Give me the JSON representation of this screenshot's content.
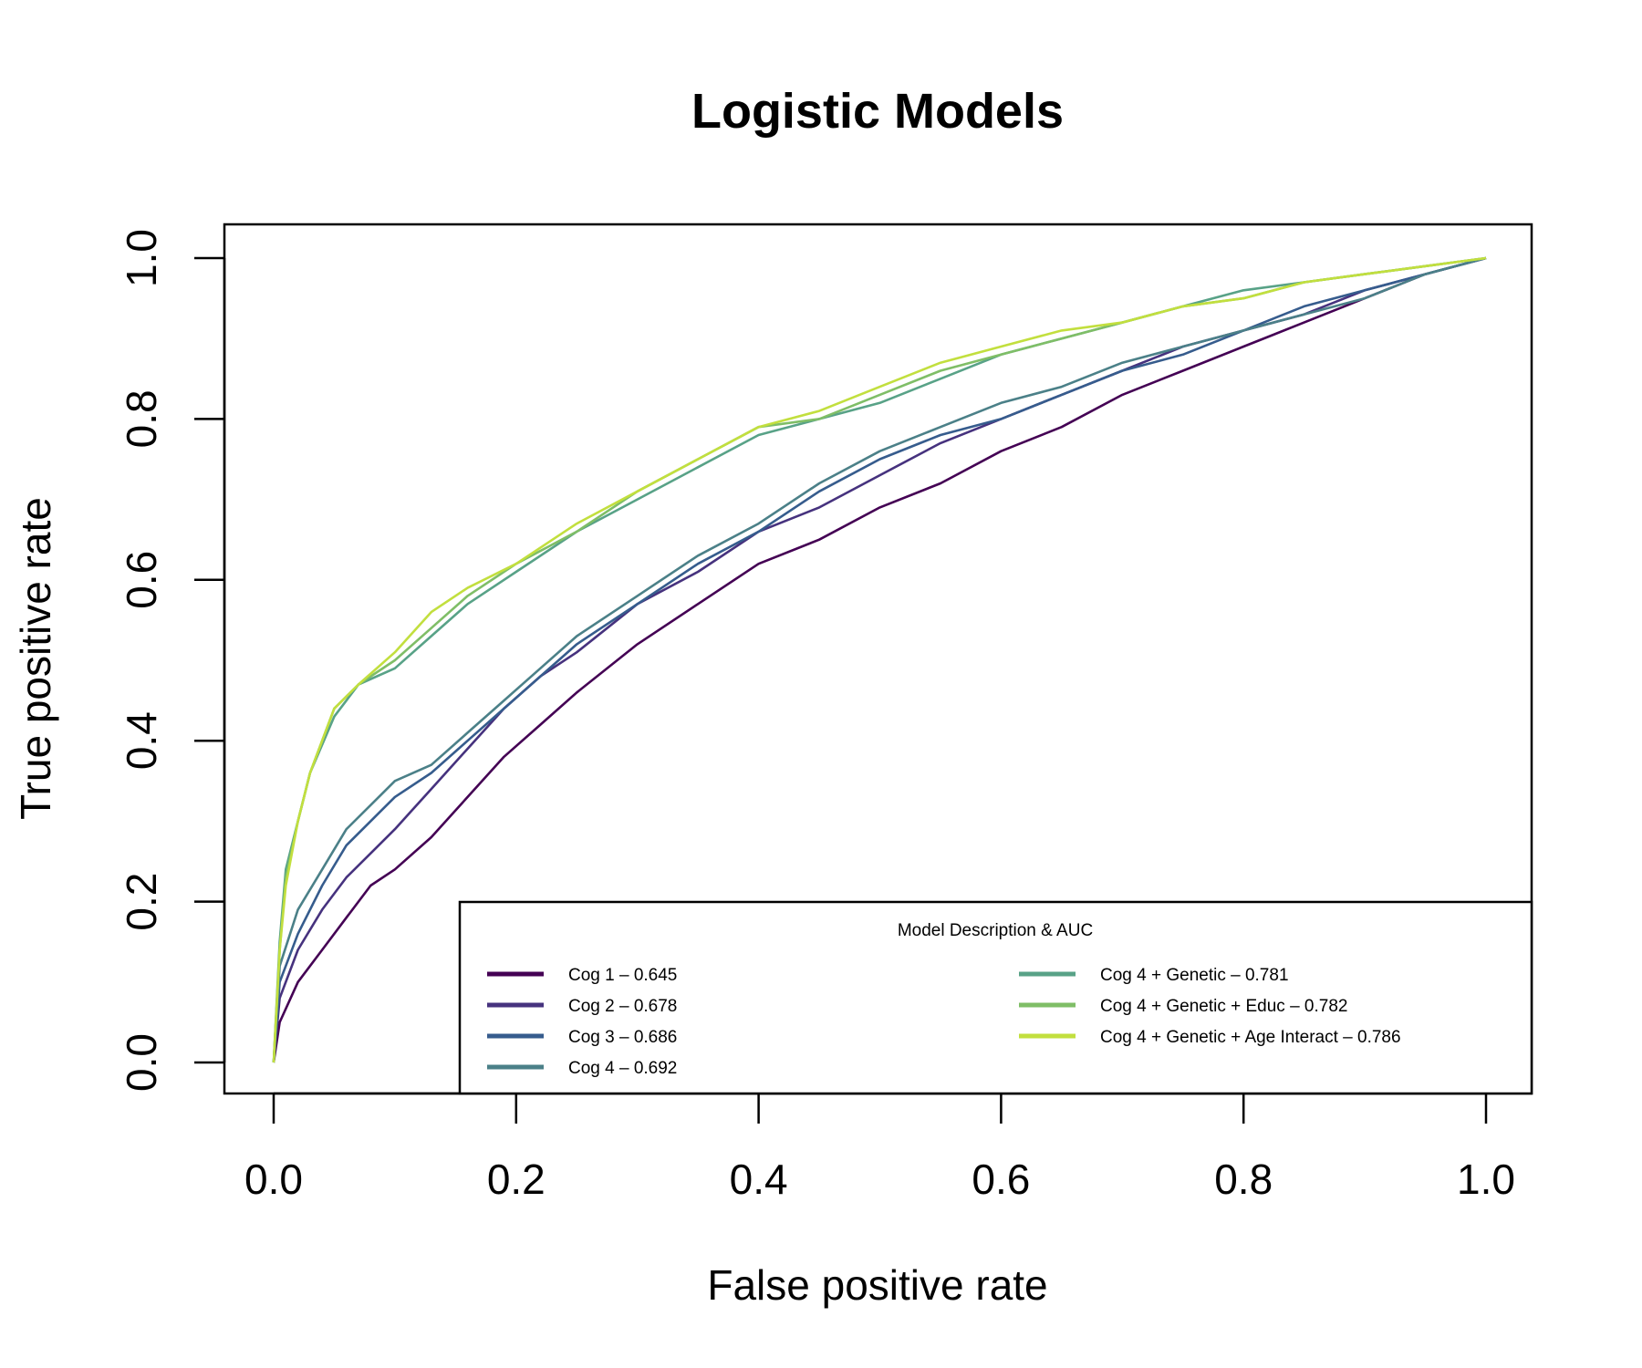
{
  "chart_data": {
    "type": "line",
    "title": "Logistic Models",
    "xlabel": "False positive rate",
    "ylabel": "True positive rate",
    "xlim": [
      0,
      1
    ],
    "ylim": [
      0,
      1
    ],
    "xticks": [
      "0.0",
      "0.2",
      "0.4",
      "0.6",
      "0.8",
      "1.0"
    ],
    "yticks": [
      "0.0",
      "0.2",
      "0.4",
      "0.6",
      "0.8",
      "1.0"
    ],
    "grid": false,
    "legend": {
      "title": "Model Description & AUC",
      "placement": "bottom-right"
    },
    "series": [
      {
        "name": "Cog 1 – 0.645",
        "color": "#440154",
        "x": [
          0,
          0.005,
          0.02,
          0.04,
          0.06,
          0.08,
          0.1,
          0.13,
          0.16,
          0.19,
          0.22,
          0.25,
          0.3,
          0.35,
          0.4,
          0.45,
          0.5,
          0.55,
          0.6,
          0.65,
          0.7,
          0.75,
          0.8,
          0.85,
          0.9,
          0.95,
          1
        ],
        "y": [
          0,
          0.05,
          0.1,
          0.14,
          0.18,
          0.22,
          0.24,
          0.28,
          0.33,
          0.38,
          0.42,
          0.46,
          0.52,
          0.57,
          0.62,
          0.65,
          0.69,
          0.72,
          0.76,
          0.79,
          0.83,
          0.86,
          0.89,
          0.92,
          0.95,
          0.98,
          1
        ]
      },
      {
        "name": "Cog 2 – 0.678",
        "color": "#46327e",
        "x": [
          0,
          0.005,
          0.02,
          0.04,
          0.06,
          0.08,
          0.1,
          0.13,
          0.16,
          0.19,
          0.22,
          0.25,
          0.3,
          0.35,
          0.4,
          0.45,
          0.5,
          0.55,
          0.6,
          0.65,
          0.7,
          0.75,
          0.8,
          0.85,
          0.9,
          0.95,
          1
        ],
        "y": [
          0,
          0.08,
          0.14,
          0.19,
          0.23,
          0.26,
          0.29,
          0.34,
          0.39,
          0.44,
          0.48,
          0.51,
          0.57,
          0.61,
          0.66,
          0.69,
          0.73,
          0.77,
          0.8,
          0.83,
          0.86,
          0.89,
          0.91,
          0.93,
          0.96,
          0.98,
          1
        ]
      },
      {
        "name": "Cog 3 – 0.686",
        "color": "#365c8d",
        "x": [
          0,
          0.005,
          0.02,
          0.04,
          0.06,
          0.08,
          0.1,
          0.13,
          0.16,
          0.19,
          0.22,
          0.25,
          0.3,
          0.35,
          0.4,
          0.45,
          0.5,
          0.55,
          0.6,
          0.65,
          0.7,
          0.75,
          0.8,
          0.85,
          0.9,
          0.95,
          1
        ],
        "y": [
          0,
          0.1,
          0.16,
          0.22,
          0.27,
          0.3,
          0.33,
          0.36,
          0.4,
          0.44,
          0.48,
          0.52,
          0.57,
          0.62,
          0.66,
          0.71,
          0.75,
          0.78,
          0.8,
          0.83,
          0.86,
          0.88,
          0.91,
          0.94,
          0.96,
          0.98,
          1
        ]
      },
      {
        "name": "Cog 4 – 0.692",
        "color": "#4b8088",
        "x": [
          0,
          0.005,
          0.02,
          0.04,
          0.06,
          0.08,
          0.1,
          0.13,
          0.16,
          0.19,
          0.22,
          0.25,
          0.3,
          0.35,
          0.4,
          0.45,
          0.5,
          0.55,
          0.6,
          0.65,
          0.7,
          0.75,
          0.8,
          0.85,
          0.9,
          0.95,
          1
        ],
        "y": [
          0,
          0.12,
          0.19,
          0.24,
          0.29,
          0.32,
          0.35,
          0.37,
          0.41,
          0.45,
          0.49,
          0.53,
          0.58,
          0.63,
          0.67,
          0.72,
          0.76,
          0.79,
          0.82,
          0.84,
          0.87,
          0.89,
          0.91,
          0.93,
          0.95,
          0.98,
          1
        ]
      },
      {
        "name": "Cog 4 + Genetic – 0.781",
        "color": "#58a287",
        "x": [
          0,
          0.005,
          0.01,
          0.02,
          0.03,
          0.05,
          0.07,
          0.1,
          0.13,
          0.16,
          0.2,
          0.25,
          0.3,
          0.35,
          0.4,
          0.45,
          0.5,
          0.55,
          0.6,
          0.65,
          0.7,
          0.75,
          0.8,
          0.85,
          0.9,
          0.95,
          1
        ],
        "y": [
          0,
          0.15,
          0.24,
          0.3,
          0.36,
          0.43,
          0.47,
          0.49,
          0.53,
          0.57,
          0.61,
          0.66,
          0.7,
          0.74,
          0.78,
          0.8,
          0.82,
          0.85,
          0.88,
          0.9,
          0.92,
          0.94,
          0.96,
          0.97,
          0.98,
          0.99,
          1
        ]
      },
      {
        "name": "Cog 4 + Genetic + Educ – 0.782",
        "color": "#7fbe67",
        "x": [
          0,
          0.005,
          0.01,
          0.02,
          0.03,
          0.05,
          0.07,
          0.1,
          0.13,
          0.16,
          0.2,
          0.25,
          0.3,
          0.35,
          0.4,
          0.45,
          0.5,
          0.55,
          0.6,
          0.65,
          0.7,
          0.75,
          0.8,
          0.85,
          0.9,
          0.95,
          1
        ],
        "y": [
          0,
          0.14,
          0.23,
          0.3,
          0.36,
          0.44,
          0.47,
          0.5,
          0.54,
          0.58,
          0.62,
          0.66,
          0.71,
          0.75,
          0.79,
          0.8,
          0.83,
          0.86,
          0.88,
          0.9,
          0.92,
          0.94,
          0.95,
          0.97,
          0.98,
          0.99,
          1
        ]
      },
      {
        "name": "Cog 4 + Genetic + Age Interact – 0.786",
        "color": "#c2df3e",
        "x": [
          0,
          0.005,
          0.01,
          0.02,
          0.03,
          0.05,
          0.07,
          0.1,
          0.13,
          0.16,
          0.2,
          0.25,
          0.3,
          0.35,
          0.4,
          0.45,
          0.5,
          0.55,
          0.6,
          0.65,
          0.7,
          0.75,
          0.8,
          0.85,
          0.9,
          0.95,
          1
        ],
        "y": [
          0,
          0.14,
          0.22,
          0.3,
          0.36,
          0.44,
          0.47,
          0.51,
          0.56,
          0.59,
          0.62,
          0.67,
          0.71,
          0.75,
          0.79,
          0.81,
          0.84,
          0.87,
          0.89,
          0.91,
          0.92,
          0.94,
          0.95,
          0.97,
          0.98,
          0.99,
          1
        ]
      }
    ]
  }
}
